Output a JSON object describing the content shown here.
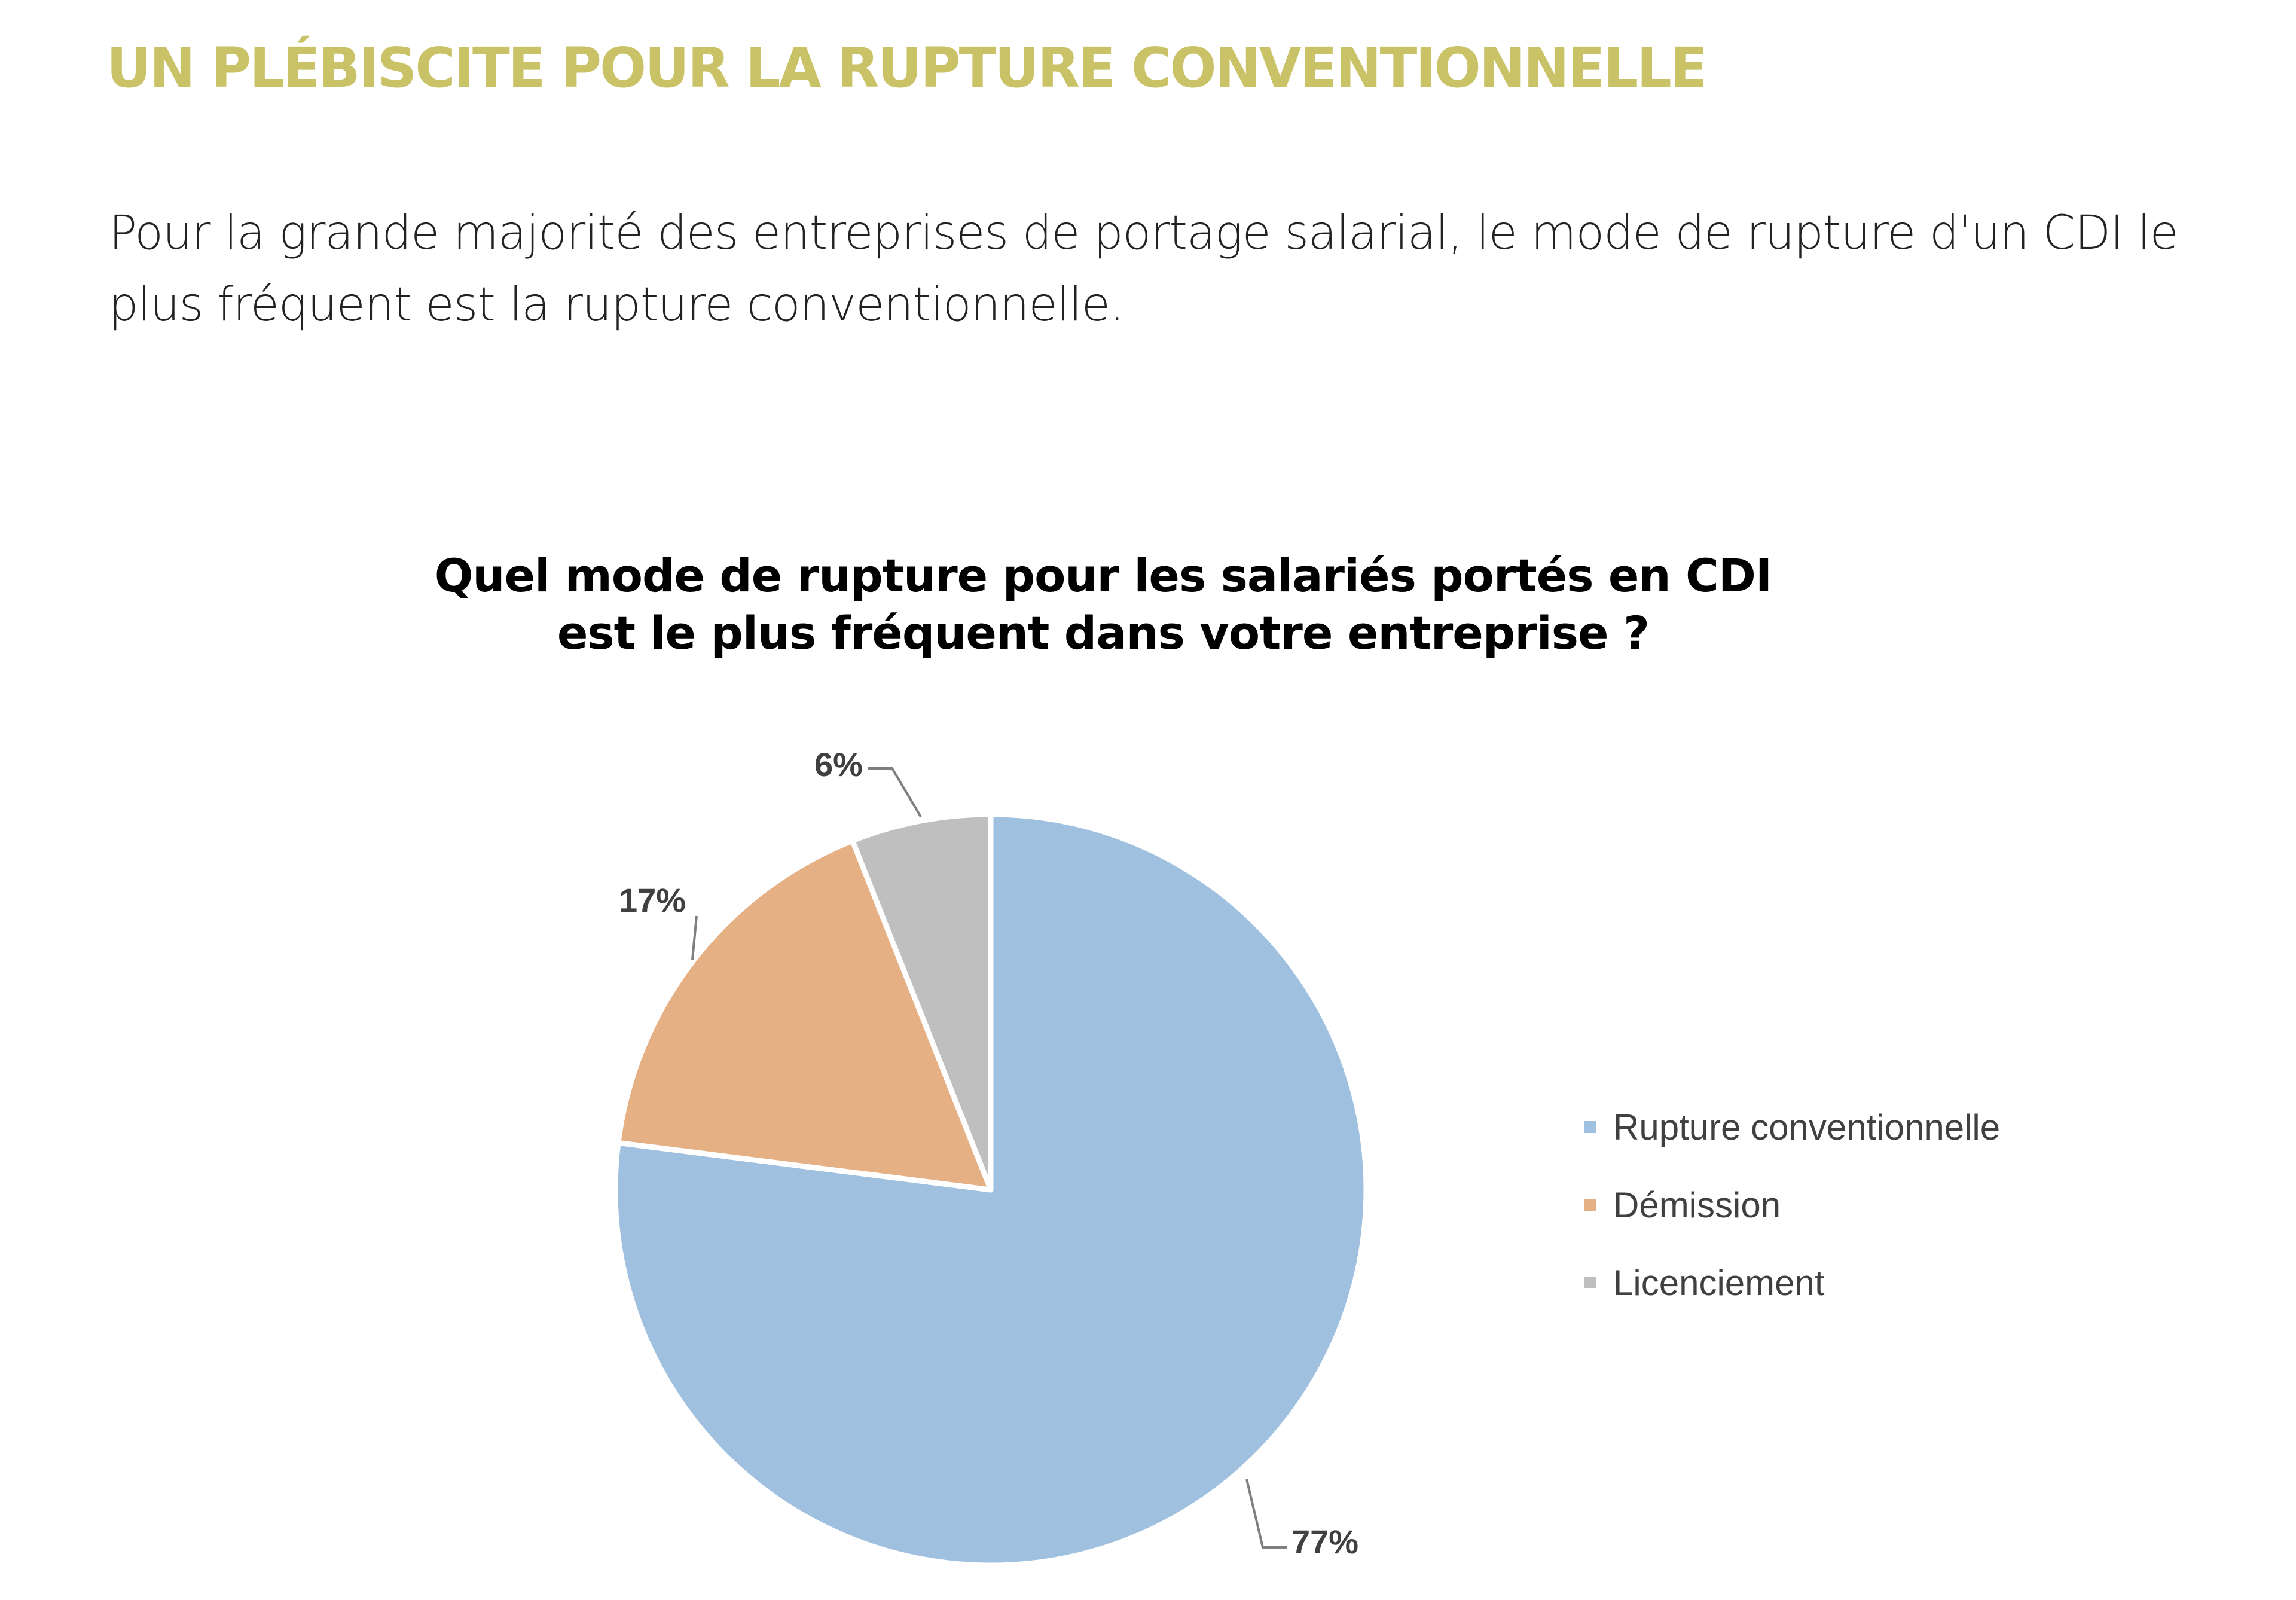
{
  "heading": "UN PLÉBISCITE POUR LA RUPTURE CONVENTIONNELLE",
  "intro": "Pour la grande majorité des entreprises de portage salarial, le mode de rupture d'un CDI le plus fréquent est la rupture conventionnelle.",
  "colors": {
    "heading": "#c9c266"
  },
  "chart_data": {
    "type": "pie",
    "title": "Quel mode de rupture pour les salariés portés en CDI est le plus fréquent dans votre entreprise ?",
    "title_lines": [
      "Quel mode de rupture pour les salariés portés en CDI",
      "est le plus fréquent dans votre entreprise ?"
    ],
    "categories": [
      "Rupture conventionnelle",
      "Démission",
      "Licenciement"
    ],
    "values": [
      77,
      17,
      6
    ],
    "labels": [
      "77%",
      "17%",
      "6%"
    ],
    "colors": [
      "#a0c0e0",
      "#e6b085",
      "#bfbfbf"
    ],
    "legend_position": "right"
  }
}
